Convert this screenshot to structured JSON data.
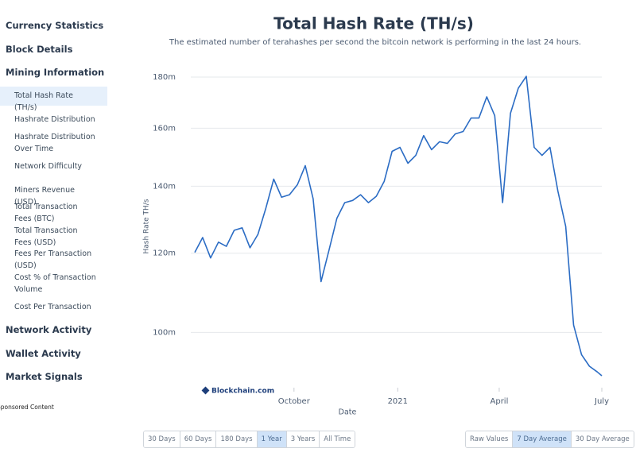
{
  "sidebar": {
    "items": [
      {
        "label": "Currency Statistics"
      },
      {
        "label": "Block Details"
      },
      {
        "label": "Mining Information"
      },
      {
        "label": "Total Hash Rate (TH/s)"
      },
      {
        "label": "Hashrate Distribution"
      },
      {
        "label": "Hashrate Distribution Over Time"
      },
      {
        "label": "Network Difficulty"
      },
      {
        "label": "Miners Revenue (USD)"
      },
      {
        "label": "Total Transaction Fees (BTC)"
      },
      {
        "label": "Total Transaction Fees (USD)"
      },
      {
        "label": "Fees Per Transaction (USD)"
      },
      {
        "label": "Cost % of Transaction Volume"
      },
      {
        "label": "Cost Per Transaction"
      },
      {
        "label": "Network Activity"
      },
      {
        "label": "Wallet Activity"
      },
      {
        "label": "Market Signals"
      }
    ],
    "sponsored": "Sponsored Content"
  },
  "chart_data": {
    "type": "line",
    "title": "Total Hash Rate (TH/s)",
    "subtitle": "The estimated number of terahashes per second the bitcoin network is performing in the last 24 hours.",
    "y_label": "Hash Rate TH/s",
    "x_label": "Date",
    "watermark": "Blockchain.com",
    "log_scale": true,
    "grid": true,
    "color": "#2b6cc4",
    "x": [
      "2020-07-05",
      "2020-07-12",
      "2020-07-19",
      "2020-07-26",
      "2020-08-02",
      "2020-08-09",
      "2020-08-16",
      "2020-08-23",
      "2020-08-30",
      "2020-09-06",
      "2020-09-13",
      "2020-09-20",
      "2020-09-27",
      "2020-10-04",
      "2020-10-11",
      "2020-10-18",
      "2020-10-25",
      "2020-11-01",
      "2020-11-08",
      "2020-11-15",
      "2020-11-22",
      "2020-11-29",
      "2020-12-06",
      "2020-12-13",
      "2020-12-20",
      "2020-12-27",
      "2021-01-03",
      "2021-01-10",
      "2021-01-17",
      "2021-01-24",
      "2021-01-31",
      "2021-02-07",
      "2021-02-14",
      "2021-02-21",
      "2021-02-28",
      "2021-03-07",
      "2021-03-14",
      "2021-03-21",
      "2021-03-28",
      "2021-04-04",
      "2021-04-11",
      "2021-04-18",
      "2021-04-25",
      "2021-05-02",
      "2021-05-09",
      "2021-05-16",
      "2021-05-23",
      "2021-05-30",
      "2021-06-06",
      "2021-06-13",
      "2021-06-20",
      "2021-06-27",
      "2021-07-01"
    ],
    "values": [
      120200000,
      124400000,
      118700000,
      123100000,
      121900000,
      126500000,
      127200000,
      121500000,
      125300000,
      133100000,
      142300000,
      136500000,
      137300000,
      140500000,
      146800000,
      136000000,
      112400000,
      120800000,
      130000000,
      134800000,
      135500000,
      137300000,
      134800000,
      136800000,
      141600000,
      151700000,
      153100000,
      147600000,
      150300000,
      157300000,
      152300000,
      155100000,
      154500000,
      157900000,
      158800000,
      163800000,
      163800000,
      172000000,
      164700000,
      134800000,
      165600000,
      175500000,
      180300000,
      153100000,
      150300000,
      153100000,
      138500000,
      127600000,
      101700000,
      95000000,
      92500000,
      91300000,
      90500000
    ],
    "xlim": [
      "2020-07-05",
      "2021-07-01"
    ],
    "xticks": [
      {
        "value": "2020-10-01",
        "label": "October"
      },
      {
        "value": "2021-01-01",
        "label": "2021"
      },
      {
        "value": "2021-04-01",
        "label": "April"
      },
      {
        "value": "2021-07-01",
        "label": "July"
      }
    ],
    "ylim": [
      90000000,
      184000000
    ],
    "yticks": [
      {
        "value": 100000000,
        "label": "100m"
      },
      {
        "value": 120000000,
        "label": "120m"
      },
      {
        "value": 140000000,
        "label": "140m"
      },
      {
        "value": 160000000,
        "label": "160m"
      },
      {
        "value": 180000000,
        "label": "180m"
      }
    ]
  },
  "controls": {
    "ranges": [
      "30 Days",
      "60 Days",
      "180 Days",
      "1 Year",
      "3 Years",
      "All Time"
    ],
    "averages": [
      "Raw Values",
      "7 Day Average",
      "30 Day Average"
    ]
  }
}
